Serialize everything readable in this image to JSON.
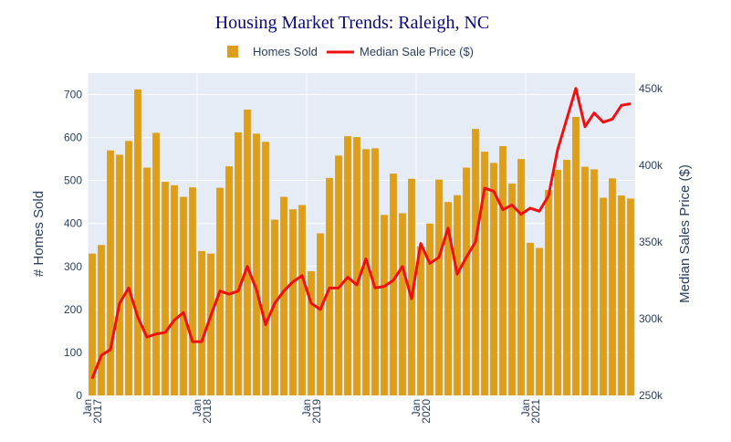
{
  "chart_data": {
    "type": "bar+line",
    "title": "Housing Market Trends: Raleigh, NC",
    "y_label": "# Homes Sold",
    "y2_label": "Median Sales Price ($)",
    "y_range": [
      0,
      750
    ],
    "y2_range": [
      250000,
      460000
    ],
    "y_ticks": [
      "0",
      "100",
      "200",
      "300",
      "400",
      "500",
      "600",
      "700"
    ],
    "y2_ticks": [
      "250k",
      "300k",
      "350k",
      "400k",
      "450k"
    ],
    "x_ticks": [
      {
        "line1": "Jan",
        "line2": "2017"
      },
      {
        "line1": "Jan",
        "line2": "2018"
      },
      {
        "line1": "Jan",
        "line2": "2019"
      },
      {
        "line1": "Jan",
        "line2": "2020"
      },
      {
        "line1": "Jan",
        "line2": "2021"
      }
    ],
    "grid": true,
    "legend_position": "top-center",
    "colors": {
      "bar": "#dd9e19",
      "line": "#ee1111",
      "plot_bg": "#e5ecf6",
      "title": "#0a0a7a",
      "axis_text": "#2a3f5f"
    },
    "x": [
      "2017-01",
      "2017-02",
      "2017-03",
      "2017-04",
      "2017-05",
      "2017-06",
      "2017-07",
      "2017-08",
      "2017-09",
      "2017-10",
      "2017-11",
      "2017-12",
      "2018-01",
      "2018-02",
      "2018-03",
      "2018-04",
      "2018-05",
      "2018-06",
      "2018-07",
      "2018-08",
      "2018-09",
      "2018-10",
      "2018-11",
      "2018-12",
      "2019-01",
      "2019-02",
      "2019-03",
      "2019-04",
      "2019-05",
      "2019-06",
      "2019-07",
      "2019-08",
      "2019-09",
      "2019-10",
      "2019-11",
      "2019-12",
      "2020-01",
      "2020-02",
      "2020-03",
      "2020-04",
      "2020-05",
      "2020-06",
      "2020-07",
      "2020-08",
      "2020-09",
      "2020-10",
      "2020-11",
      "2020-12",
      "2021-01",
      "2021-02",
      "2021-03",
      "2021-04",
      "2021-05",
      "2021-06",
      "2021-07",
      "2021-08",
      "2021-09",
      "2021-10",
      "2021-11",
      "2021-12"
    ],
    "series": [
      {
        "name": "Homes Sold",
        "type": "bar",
        "axis": "y",
        "values": [
          330,
          350,
          570,
          560,
          592,
          712,
          530,
          611,
          497,
          489,
          462,
          484,
          336,
          330,
          483,
          533,
          612,
          665,
          609,
          590,
          409,
          462,
          433,
          443,
          289,
          377,
          506,
          558,
          603,
          601,
          573,
          575,
          420,
          516,
          424,
          504,
          347,
          400,
          502,
          450,
          466,
          530,
          620,
          567,
          541,
          580,
          493,
          550,
          355,
          343,
          478,
          525,
          548,
          648,
          532,
          526,
          460,
          505,
          465,
          458
        ]
      },
      {
        "name": "Median Sale Price ($)",
        "type": "line",
        "axis": "y2",
        "values": [
          261000,
          276000,
          280000,
          310000,
          320000,
          301000,
          288000,
          290000,
          291000,
          299000,
          304000,
          285000,
          285000,
          302000,
          318000,
          316000,
          318000,
          334000,
          319000,
          296000,
          310000,
          318000,
          324000,
          328000,
          310000,
          306000,
          320000,
          320000,
          327000,
          322000,
          339000,
          320000,
          321000,
          325000,
          334000,
          313000,
          349000,
          336000,
          340000,
          359000,
          329000,
          340000,
          350000,
          385000,
          383000,
          371000,
          374000,
          368000,
          372000,
          370000,
          380000,
          410000,
          430000,
          450000,
          425000,
          434000,
          428000,
          430000,
          439000,
          440000
        ]
      }
    ]
  }
}
